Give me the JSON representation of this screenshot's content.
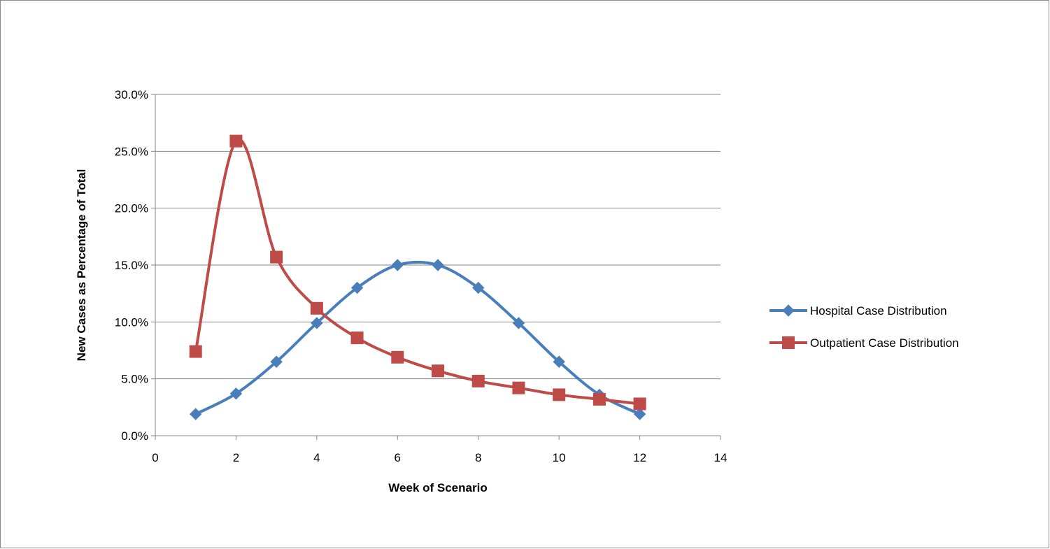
{
  "chart_data": {
    "type": "line",
    "smooth": true,
    "xlabel": "Week of Scenario",
    "ylabel": "New Cases as Percentage of Total",
    "xlim": [
      0,
      14
    ],
    "ylim": [
      0,
      0.3
    ],
    "x_ticks": [
      0,
      2,
      4,
      6,
      8,
      10,
      12,
      14
    ],
    "y_ticks": [
      0,
      0.05,
      0.1,
      0.15,
      0.2,
      0.25,
      0.3
    ],
    "x_tick_labels": [
      "0",
      "2",
      "4",
      "6",
      "8",
      "10",
      "12",
      "14"
    ],
    "y_tick_labels": [
      "0.0%",
      "5.0%",
      "10.0%",
      "15.0%",
      "20.0%",
      "25.0%",
      "30.0%"
    ],
    "grid": "horizontal",
    "legend_position": "right",
    "series": [
      {
        "name": "Hospital Case Distribution",
        "color": "#4a7ebb",
        "marker": "diamond",
        "x": [
          1,
          2,
          3,
          4,
          5,
          6,
          7,
          8,
          9,
          10,
          11,
          12
        ],
        "y": [
          0.019,
          0.037,
          0.065,
          0.099,
          0.13,
          0.15,
          0.15,
          0.13,
          0.099,
          0.065,
          0.036,
          0.019
        ]
      },
      {
        "name": "Outpatient Case Distribution",
        "color": "#be4b48",
        "marker": "square",
        "x": [
          1,
          2,
          3,
          4,
          5,
          6,
          7,
          8,
          9,
          10,
          11,
          12
        ],
        "y": [
          0.074,
          0.259,
          0.157,
          0.112,
          0.086,
          0.069,
          0.057,
          0.048,
          0.042,
          0.036,
          0.032,
          0.028
        ]
      }
    ]
  }
}
